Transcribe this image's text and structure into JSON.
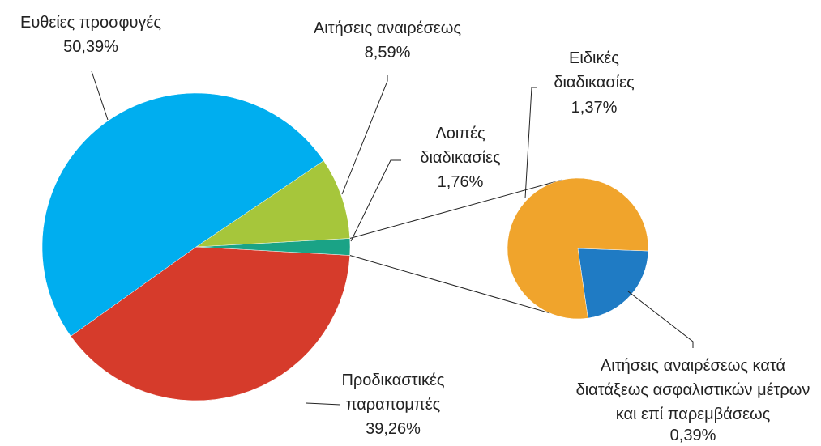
{
  "chart_data": {
    "type": "pie",
    "categories": [
      "Ευθείες προσφυγές",
      "Αιτήσεις αναιρέσεως",
      "Λοιπές διαδικασίες",
      "Προδικαστικές παραπομπές"
    ],
    "values": [
      50.39,
      8.59,
      1.76,
      39.26
    ],
    "value_labels": [
      "50,39%",
      "8,59%",
      "1,76%",
      "39,26%"
    ],
    "colors": [
      "#00aeef",
      "#a6c63b",
      "#1aa386",
      "#d63b2b"
    ],
    "secondary": {
      "categories": [
        "Ειδικές διαδικασίες",
        "Αιτήσεις αναιρέσεως κατά διατάξεως ασφαλιστικών μέτρων και επί παρεμβάσεως"
      ],
      "values": [
        1.37,
        0.39
      ],
      "value_labels": [
        "1,37%",
        "0,39%"
      ],
      "colors": [
        "#f0a42c",
        "#1f7bc4"
      ]
    }
  }
}
